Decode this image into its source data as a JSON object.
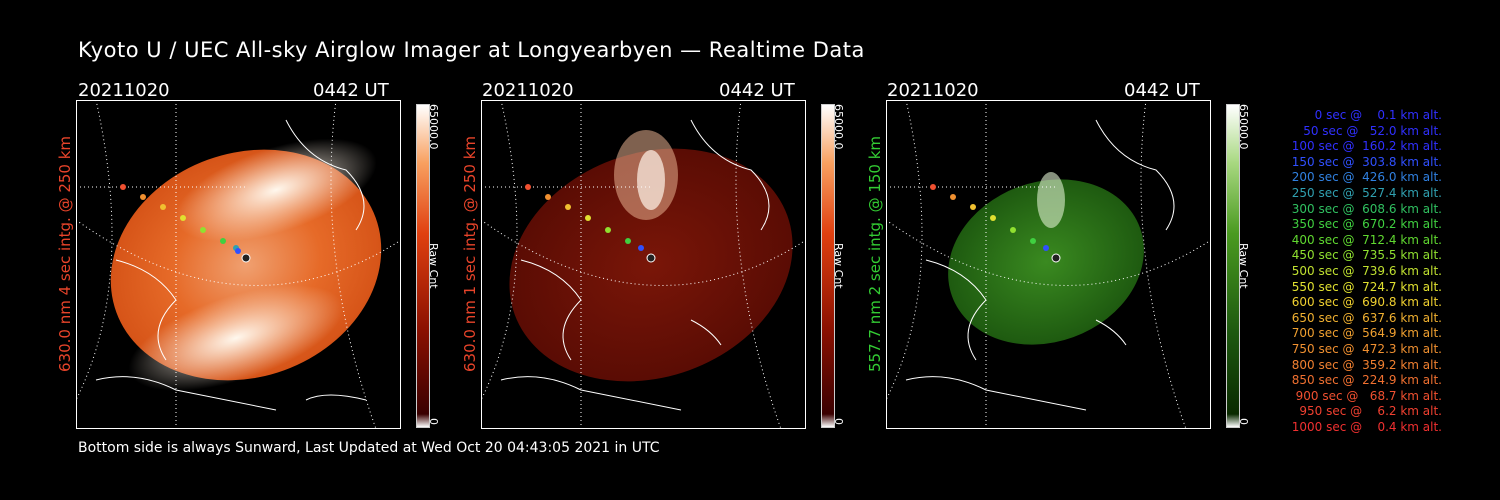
{
  "title": "Kyoto U / UEC All-sky Airglow Imager at Longyearbyen — Realtime Data",
  "footer": "Bottom side is always Sunward, Last Updated at Wed Oct 20 04:43:05 2021 in UTC",
  "panels": [
    {
      "date": "20211020",
      "time": "0442 UT",
      "label": "630.0 nm 4 sec intg. @ 250 km",
      "label_color": "#e8442a",
      "cbar_max": "65000.0",
      "cbar_min": "0",
      "cbar_title": "Raw Cnt"
    },
    {
      "date": "20211020",
      "time": "0442 UT",
      "label": "630.0 nm 1 sec intg. @ 250 km",
      "label_color": "#e8442a",
      "cbar_max": "65000.0",
      "cbar_min": "0",
      "cbar_title": "Raw Cnt"
    },
    {
      "date": "20211020",
      "time": "0442 UT",
      "label": "557.7 nm 2 sec intg. @ 150 km",
      "label_color": "#33cc33",
      "cbar_max": "65000.0",
      "cbar_min": "0",
      "cbar_title": "Raw Cnt"
    }
  ],
  "legend": [
    {
      "text": "   0 sec @    0.1 km alt.",
      "color": "#3030ff"
    },
    {
      "text": "  50 sec @   52.0 km alt.",
      "color": "#3030ff"
    },
    {
      "text": " 100 sec @  160.2 km alt.",
      "color": "#3030ff"
    },
    {
      "text": " 150 sec @  303.8 km alt.",
      "color": "#3050ff"
    },
    {
      "text": " 200 sec @  426.0 km alt.",
      "color": "#3080e0"
    },
    {
      "text": " 250 sec @  527.4 km alt.",
      "color": "#30a0b0"
    },
    {
      "text": " 300 sec @  608.6 km alt.",
      "color": "#30c060"
    },
    {
      "text": " 350 sec @  670.2 km alt.",
      "color": "#40d040"
    },
    {
      "text": " 400 sec @  712.4 km alt.",
      "color": "#60d830"
    },
    {
      "text": " 450 sec @  735.5 km alt.",
      "color": "#90e030"
    },
    {
      "text": " 500 sec @  739.6 km alt.",
      "color": "#c0e030"
    },
    {
      "text": " 550 sec @  724.7 km alt.",
      "color": "#e0e030"
    },
    {
      "text": " 600 sec @  690.8 km alt.",
      "color": "#f0d030"
    },
    {
      "text": " 650 sec @  637.6 km alt.",
      "color": "#f0b030"
    },
    {
      "text": " 700 sec @  564.9 km alt.",
      "color": "#f0a030"
    },
    {
      "text": " 750 sec @  472.3 km alt.",
      "color": "#f09030"
    },
    {
      "text": " 800 sec @  359.2 km alt.",
      "color": "#f08030"
    },
    {
      "text": " 850 sec @  224.9 km alt.",
      "color": "#f07030"
    },
    {
      "text": " 900 sec @   68.7 km alt.",
      "color": "#f05030"
    },
    {
      "text": " 950 sec @    6.2 km alt.",
      "color": "#f04030"
    },
    {
      "text": "1000 sec @    0.4 km alt.",
      "color": "#f03030"
    }
  ]
}
